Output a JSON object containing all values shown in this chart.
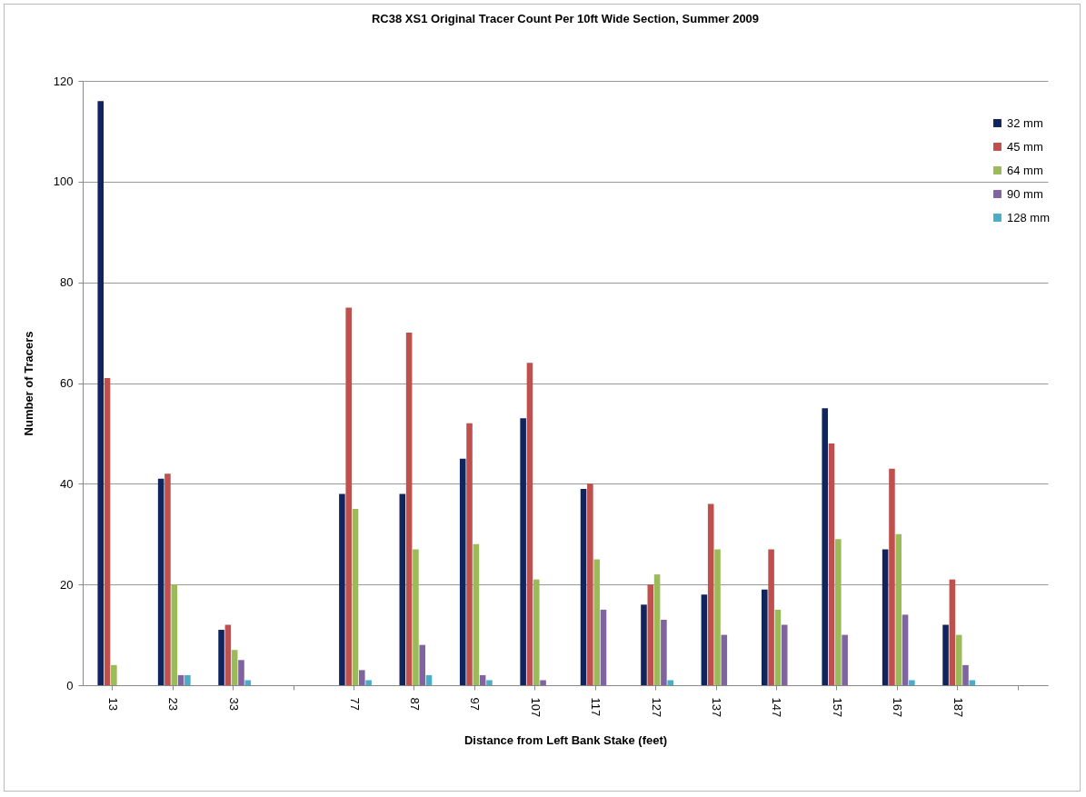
{
  "chart_data": {
    "type": "bar",
    "title": "RC38 XS1 Original Tracer Count Per 10ft Wide Section, Summer 2009",
    "xlabel": "Distance from Left Bank Stake (feet)",
    "ylabel": "Number of Tracers",
    "categories": [
      "13",
      "23",
      "33",
      null,
      "77",
      "87",
      "97",
      "107",
      "117",
      "127",
      "137",
      "147",
      "157",
      "167",
      "187",
      null
    ],
    "series": [
      {
        "name": "32 mm",
        "color": "#10255e",
        "values": [
          116,
          41,
          11,
          null,
          38,
          38,
          45,
          53,
          39,
          16,
          18,
          19,
          55,
          27,
          12,
          null
        ]
      },
      {
        "name": "45 mm",
        "color": "#c0504d",
        "values": [
          61,
          42,
          12,
          null,
          75,
          70,
          52,
          64,
          40,
          20,
          36,
          27,
          48,
          43,
          21,
          null
        ]
      },
      {
        "name": "64 mm",
        "color": "#9bbb59",
        "values": [
          4,
          20,
          7,
          null,
          35,
          27,
          28,
          21,
          25,
          22,
          27,
          15,
          29,
          30,
          10,
          null
        ]
      },
      {
        "name": "90 mm",
        "color": "#8064a2",
        "values": [
          0,
          2,
          5,
          null,
          3,
          8,
          2,
          1,
          15,
          13,
          10,
          12,
          10,
          14,
          4,
          null
        ]
      },
      {
        "name": "128 mm",
        "color": "#4bacc6",
        "values": [
          0,
          2,
          1,
          null,
          1,
          2,
          1,
          0,
          0,
          1,
          0,
          0,
          0,
          1,
          1,
          null
        ]
      }
    ],
    "ylim": [
      0,
      120
    ],
    "yticks": [
      0,
      20,
      40,
      60,
      80,
      100,
      120
    ],
    "grid": "y",
    "legend": "top right"
  }
}
